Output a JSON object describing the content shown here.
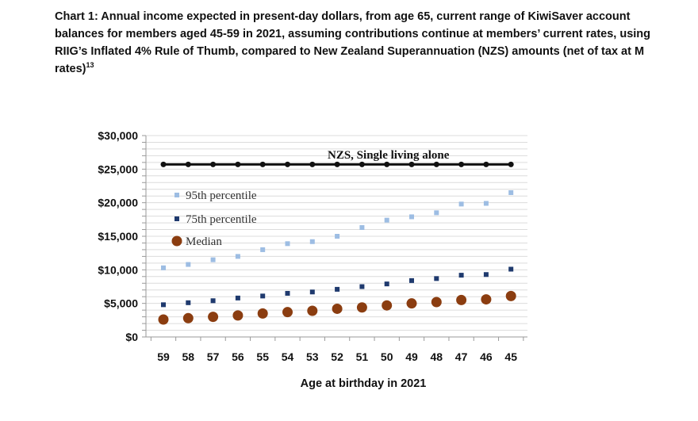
{
  "caption": {
    "text": "Chart 1: Annual income expected in present-day dollars, from age 65, current range of KiwiSaver account balances for members aged 45-59 in 2021, assuming contributions continue at members’ current rates, using RIIG’s Inflated 4% Rule of Thumb, compared to New Zealand Superannuation (NZS) amounts (net of tax at M rates)",
    "footnote": "13"
  },
  "chart_data": {
    "type": "scatter",
    "title": "",
    "xlabel": "Age at birthday in 2021",
    "ylabel": "",
    "categories": [
      "59",
      "58",
      "57",
      "56",
      "55",
      "54",
      "53",
      "52",
      "51",
      "50",
      "49",
      "48",
      "47",
      "46",
      "45"
    ],
    "ylim": [
      0,
      30000
    ],
    "yticks": [
      0,
      5000,
      10000,
      15000,
      20000,
      25000,
      30000
    ],
    "ytick_labels": [
      "$0",
      "$5,000",
      "$10,000",
      "$15,000",
      "$20,000",
      "$25,000",
      "$30,000"
    ],
    "grid": true,
    "legend_position": "upper-left",
    "series": [
      {
        "name": "95th percentile",
        "marker": "square",
        "color": "#9dbde3",
        "values": [
          10300,
          10800,
          11500,
          12000,
          13000,
          13900,
          14200,
          15000,
          16300,
          17400,
          17900,
          18500,
          19800,
          19900,
          21500
        ]
      },
      {
        "name": "75th percentile",
        "marker": "square",
        "color": "#1f3a6e",
        "values": [
          4800,
          5100,
          5400,
          5800,
          6100,
          6500,
          6700,
          7100,
          7500,
          7900,
          8400,
          8700,
          9200,
          9300,
          10100
        ]
      },
      {
        "name": "Median",
        "marker": "circle",
        "color": "#8b3d10",
        "values": [
          2600,
          2800,
          3000,
          3200,
          3500,
          3700,
          3900,
          4200,
          4400,
          4700,
          5000,
          5200,
          5500,
          5600,
          6100
        ]
      },
      {
        "name": "NZS, Single living alone",
        "marker": "line-circle",
        "color": "#111111",
        "values": [
          25700,
          25700,
          25700,
          25700,
          25700,
          25700,
          25700,
          25700,
          25700,
          25700,
          25700,
          25700,
          25700,
          25700,
          25700
        ]
      }
    ]
  }
}
